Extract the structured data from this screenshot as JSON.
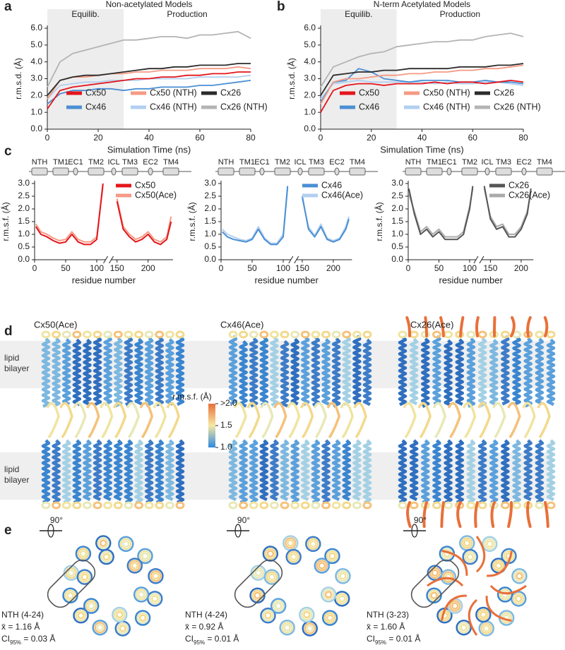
{
  "chart_data": [
    {
      "type": "line",
      "panel": "a",
      "title": "Non-acetylated Models",
      "annotations": [
        "Equilib.",
        "Production"
      ],
      "shade_x": [
        0,
        30
      ],
      "xlabel": "Simulation Time (ns)",
      "ylabel": "r.m.s.d. (Å)",
      "legend": "bottom-left",
      "x": [
        0,
        5,
        10,
        15,
        20,
        25,
        30,
        35,
        40,
        45,
        50,
        55,
        60,
        65,
        70,
        75,
        80
      ],
      "xlim": [
        0,
        80
      ],
      "xticks": [
        0,
        20,
        40,
        60,
        80
      ],
      "ylim": [
        0,
        6
      ],
      "yticks": [
        {
          "value": 0,
          "label": "0.0"
        },
        {
          "value": 1,
          "label": "1.0"
        },
        {
          "value": 2,
          "label": "2.0"
        },
        {
          "value": 3,
          "label": "3.0"
        },
        {
          "value": 4,
          "label": "4.0"
        },
        {
          "value": 5,
          "label": "5.0"
        },
        {
          "value": 6,
          "label": "6.0"
        }
      ],
      "series": [
        {
          "name": "Cx50",
          "color": "#e4151b",
          "values": [
            1.2,
            2.3,
            2.5,
            2.6,
            2.7,
            2.8,
            2.9,
            3.0,
            3.0,
            3.1,
            3.1,
            3.2,
            3.2,
            3.3,
            3.3,
            3.4,
            3.4
          ]
        },
        {
          "name": "Cx50 (NTH)",
          "color": "#f59a84",
          "values": [
            1.8,
            2.9,
            3.1,
            3.1,
            3.2,
            3.3,
            3.3,
            3.4,
            3.4,
            3.5,
            3.5,
            3.5,
            3.6,
            3.6,
            3.6,
            3.7,
            3.6
          ]
        },
        {
          "name": "Cx26",
          "color": "#2b2b2b",
          "values": [
            2.0,
            2.9,
            3.1,
            3.2,
            3.2,
            3.3,
            3.4,
            3.5,
            3.6,
            3.6,
            3.7,
            3.7,
            3.8,
            3.8,
            3.8,
            3.9,
            3.9
          ]
        },
        {
          "name": "Cx46",
          "color": "#4a8fd4",
          "values": [
            1.5,
            2.1,
            2.3,
            2.3,
            2.4,
            2.4,
            2.3,
            2.4,
            2.4,
            2.5,
            2.5,
            2.5,
            2.6,
            2.6,
            2.7,
            2.8,
            2.9
          ]
        },
        {
          "name": "Cx46 (NTH)",
          "color": "#b2cff0",
          "values": [
            1.8,
            2.6,
            2.7,
            2.8,
            2.8,
            2.9,
            2.9,
            2.9,
            3.0,
            3.0,
            3.0,
            3.0,
            3.1,
            3.1,
            3.1,
            3.1,
            3.2
          ]
        },
        {
          "name": "Cx26 (NTH)",
          "color": "#b4b4b4",
          "values": [
            2.5,
            4.0,
            4.5,
            4.7,
            4.9,
            5.1,
            5.3,
            5.3,
            5.4,
            5.5,
            5.5,
            5.4,
            5.6,
            5.6,
            5.7,
            5.8,
            5.4
          ]
        }
      ]
    },
    {
      "type": "line",
      "panel": "b",
      "title": "N-term Acetylated Models",
      "annotations": [
        "Equilib.",
        "Production"
      ],
      "shade_x": [
        0,
        30
      ],
      "xlabel": "Simulation Time (ns)",
      "ylabel": "r.m.s.d. (Å)",
      "legend": "bottom-left",
      "x": [
        0,
        5,
        10,
        15,
        20,
        25,
        30,
        35,
        40,
        45,
        50,
        55,
        60,
        65,
        70,
        75,
        80
      ],
      "xlim": [
        0,
        80
      ],
      "xticks": [
        0,
        20,
        40,
        60,
        80
      ],
      "ylim": [
        0,
        6
      ],
      "yticks": [
        {
          "value": 0,
          "label": "0.0"
        },
        {
          "value": 1,
          "label": "1.0"
        },
        {
          "value": 2,
          "label": "2.0"
        },
        {
          "value": 3,
          "label": "3.0"
        },
        {
          "value": 4,
          "label": "4.0"
        },
        {
          "value": 5,
          "label": "5.0"
        },
        {
          "value": 6,
          "label": "6.0"
        }
      ],
      "series": [
        {
          "name": "Cx50",
          "color": "#e4151b",
          "values": [
            1.0,
            2.3,
            2.6,
            2.7,
            2.7,
            2.6,
            2.7,
            2.7,
            2.7,
            2.8,
            2.7,
            2.8,
            2.8,
            2.7,
            2.8,
            2.9,
            2.8
          ]
        },
        {
          "name": "Cx50 (NTH)",
          "color": "#f59a84",
          "values": [
            1.5,
            2.8,
            3.0,
            3.0,
            3.1,
            3.2,
            3.2,
            3.3,
            3.3,
            3.4,
            3.4,
            3.5,
            3.5,
            3.6,
            3.6,
            3.7,
            3.8
          ]
        },
        {
          "name": "Cx26",
          "color": "#2b2b2b",
          "values": [
            2.0,
            3.2,
            3.3,
            3.4,
            3.4,
            3.5,
            3.5,
            3.6,
            3.6,
            3.6,
            3.6,
            3.7,
            3.7,
            3.7,
            3.8,
            3.8,
            3.9
          ]
        },
        {
          "name": "Cx46",
          "color": "#4a8fd4",
          "values": [
            1.6,
            2.8,
            2.9,
            3.6,
            3.4,
            3.0,
            2.9,
            2.8,
            2.9,
            2.9,
            2.9,
            2.8,
            2.8,
            2.9,
            2.8,
            2.8,
            2.7
          ]
        },
        {
          "name": "Cx46 (NTH)",
          "color": "#b2cff0",
          "values": [
            1.8,
            2.7,
            2.8,
            2.9,
            2.8,
            2.8,
            2.8,
            2.8,
            2.8,
            2.7,
            2.8,
            2.7,
            2.7,
            2.8,
            2.8,
            2.7,
            2.6
          ]
        },
        {
          "name": "Cx26 (NTH)",
          "color": "#b4b4b4",
          "values": [
            2.5,
            3.7,
            4.0,
            4.3,
            4.5,
            4.6,
            4.9,
            5.0,
            5.1,
            5.2,
            5.2,
            5.3,
            5.3,
            5.5,
            5.6,
            5.7,
            5.5
          ]
        }
      ]
    },
    {
      "type": "line",
      "panel": "c",
      "topology": [
        "NTH",
        "TM1",
        "EC1",
        "TM2",
        "ICL",
        "TM3",
        "EC2",
        "TM4"
      ],
      "xlabel": "residue number",
      "ylabel": "r.m.s.f. (Å)",
      "legend": "top-right",
      "x": [
        2,
        10,
        20,
        30,
        40,
        50,
        60,
        70,
        80,
        90,
        100,
        110,
        130,
        150,
        160,
        170,
        180,
        190,
        200,
        210,
        220,
        230,
        237
      ],
      "xlim": [
        0,
        240
      ],
      "x_break": [
        112,
        143
      ],
      "xticks": [
        0,
        50,
        100,
        150,
        200
      ],
      "ylim": [
        0,
        3
      ],
      "yticks": [
        {
          "value": 0,
          "label": "0.0"
        },
        0.5,
        {
          "value": 1,
          "label": "1.0"
        },
        1.5,
        {
          "value": 2,
          "label": "2.0"
        },
        2.5,
        {
          "value": 3,
          "label": "3.0"
        }
      ],
      "series": [
        {
          "name": "Cx50",
          "color": "#e4151b",
          "values": [
            1.3,
            1.0,
            0.9,
            0.75,
            0.65,
            0.7,
            1.0,
            0.7,
            0.6,
            0.6,
            0.8,
            3.0,
            null,
            2.3,
            1.2,
            0.9,
            0.7,
            0.8,
            1.0,
            0.7,
            0.6,
            0.8,
            1.5
          ]
        },
        {
          "name": "Cx50(Ace)",
          "color": "#f59a84",
          "values": [
            1.4,
            1.1,
            1.0,
            0.85,
            0.75,
            0.8,
            1.1,
            0.8,
            0.7,
            0.7,
            0.9,
            2.9,
            null,
            2.4,
            1.3,
            1.0,
            0.8,
            0.9,
            1.1,
            0.8,
            0.7,
            0.9,
            1.7
          ]
        }
      ]
    },
    {
      "type": "line",
      "topology": [
        "NTH",
        "TM1",
        "EC1",
        "TM2",
        "ICL",
        "TM3",
        "EC2",
        "TM4"
      ],
      "xlabel": "residue number",
      "ylabel": "r.m.s.f. (Å)",
      "legend": "top-right",
      "x": [
        2,
        10,
        20,
        30,
        40,
        50,
        60,
        70,
        80,
        90,
        100,
        107,
        130,
        150,
        160,
        170,
        180,
        190,
        200,
        210,
        220,
        225
      ],
      "xlim": [
        0,
        230
      ],
      "x_break": [
        110,
        143
      ],
      "xticks": [
        0,
        50,
        100,
        150,
        200
      ],
      "ylim": [
        0,
        3
      ],
      "yticks": [
        {
          "value": 0,
          "label": "0.0"
        },
        0.5,
        {
          "value": 1,
          "label": "1.0"
        },
        1.5,
        {
          "value": 2,
          "label": "2.0"
        },
        2.5,
        {
          "value": 3,
          "label": "3.0"
        }
      ],
      "series": [
        {
          "name": "Cx46",
          "color": "#4a8fd4",
          "values": [
            1.1,
            0.9,
            0.8,
            0.75,
            0.7,
            0.8,
            1.2,
            0.8,
            0.6,
            0.6,
            0.9,
            2.9,
            null,
            2.5,
            1.2,
            0.9,
            1.3,
            0.8,
            0.7,
            0.8,
            1.2,
            1.6
          ]
        },
        {
          "name": "Cx46(Ace)",
          "color": "#b2cff0",
          "values": [
            1.2,
            1.0,
            0.9,
            0.8,
            0.75,
            0.85,
            1.3,
            0.85,
            0.65,
            0.65,
            1.0,
            2.8,
            null,
            2.4,
            1.3,
            0.95,
            1.4,
            0.85,
            0.75,
            0.85,
            1.3,
            1.7
          ]
        }
      ]
    },
    {
      "type": "line",
      "topology": [
        "NTH",
        "TM1",
        "EC1",
        "TM2",
        "ICL",
        "TM3",
        "EC2",
        "TM4"
      ],
      "xlabel": "residue number",
      "ylabel": "r.m.s.f. (Å)",
      "legend": "top-right",
      "x": [
        1,
        10,
        20,
        30,
        40,
        50,
        60,
        70,
        80,
        90,
        100,
        105,
        125,
        140,
        150,
        160,
        170,
        180,
        190,
        200,
        210,
        216
      ],
      "xlim": [
        0,
        220
      ],
      "x_break": [
        108,
        138
      ],
      "xticks": [
        0,
        50,
        100,
        150,
        200
      ],
      "ylim": [
        0,
        3
      ],
      "yticks": [
        {
          "value": 0,
          "label": "0.0"
        },
        0.5,
        {
          "value": 1,
          "label": "1.0"
        },
        1.5,
        {
          "value": 2,
          "label": "2.0"
        },
        2.5,
        {
          "value": 3,
          "label": "3.0"
        }
      ],
      "series": [
        {
          "name": "Cx26",
          "color": "#555555",
          "values": [
            2.8,
            1.8,
            1.0,
            1.2,
            0.9,
            1.1,
            0.8,
            0.8,
            0.8,
            1.0,
            2.0,
            2.9,
            null,
            2.9,
            1.6,
            1.2,
            1.3,
            0.9,
            0.9,
            1.2,
            1.8,
            2.8
          ]
        },
        {
          "name": "Cx26(Ace)",
          "color": "#aaaaaa",
          "values": [
            2.6,
            1.9,
            1.1,
            1.3,
            1.0,
            1.2,
            0.9,
            0.9,
            0.9,
            1.1,
            2.1,
            2.8,
            null,
            2.8,
            1.7,
            1.3,
            1.4,
            1.0,
            1.0,
            1.3,
            1.9,
            2.7
          ]
        }
      ]
    }
  ],
  "panel_d": {
    "label": "d",
    "models": [
      "Cx50(Ace)",
      "Cx46(Ace)",
      "Cx26(Ace)"
    ],
    "membrane_label": "lipid bilayer",
    "colorbar": {
      "title": "r.m.s.f. (Å)",
      "lim": [
        1.0,
        2.0
      ],
      "ticks": [
        {
          "value": 2.0,
          "label": ">2.0"
        },
        1.5,
        {
          "value": 1.0,
          "label": "1.0"
        }
      ]
    }
  },
  "panel_e": {
    "label": "e",
    "rotation": "90°",
    "models": [
      {
        "region": "NTH (4-24)",
        "mean": "x̄ = 1.16 Å",
        "ci": "CI",
        "ci_sub": "95%",
        "ci_value": " = 0.03 Å"
      },
      {
        "region": "NTH (4-24)",
        "mean": "x̄ = 0.92 Å",
        "ci": "CI",
        "ci_sub": "95%",
        "ci_value": " = 0.01 Å"
      },
      {
        "region": "NTH (3-23)",
        "mean": "x̄ = 1.60 Å",
        "ci": "CI",
        "ci_sub": "95%",
        "ci_value": " = 0.01 Å"
      }
    ]
  }
}
